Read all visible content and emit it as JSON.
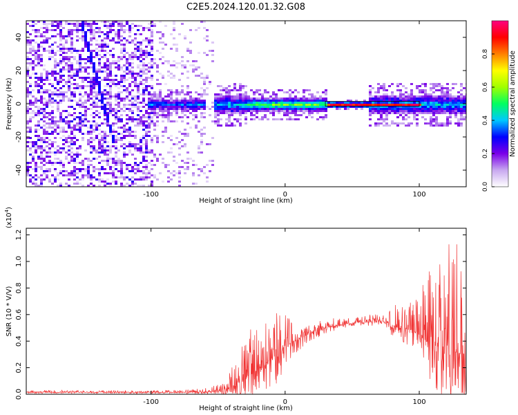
{
  "title": "C2E5.2024.120.01.32.G08",
  "chart_data": [
    {
      "type": "heatmap",
      "xlabel": "Height of straight line (km)",
      "ylabel": "Frequency (Hz)",
      "xlim": [
        -193,
        135
      ],
      "ylim": [
        -50,
        50
      ],
      "x_ticks": [
        -100,
        0,
        100
      ],
      "y_ticks": [
        -40,
        -20,
        0,
        20,
        40
      ],
      "colorbar": {
        "label": "Normalized spectral amplitude",
        "range": [
          0,
          1
        ],
        "ticks": [
          0.0,
          0.2,
          0.4,
          0.6,
          0.8
        ],
        "colors": [
          "#ffffff",
          "#c8a8f0",
          "#7a00e8",
          "#0000ff",
          "#00c8ff",
          "#00ff60",
          "#a0ff00",
          "#ffff00",
          "#ff8000",
          "#ff0000",
          "#ff0080"
        ]
      },
      "features": {
        "noise_region_x": [
          -193,
          -55
        ],
        "dense_noise_x": [
          -193,
          -100
        ],
        "diagonal_line": [
          [
            -152,
            48
          ],
          [
            -130,
            -18
          ]
        ],
        "signal_band": [
          {
            "x": [
              -103,
              -60
            ],
            "halfwidth_hz": 3.5,
            "level": 0.35
          },
          {
            "x": [
              -55,
              -30
            ],
            "halfwidth_hz": 6,
            "level": 0.4
          },
          {
            "x": [
              -30,
              30
            ],
            "halfwidth_hz": 4,
            "level": 0.55
          },
          {
            "x": [
              30,
              100
            ],
            "halfwidth_hz": 1.5,
            "level": 0.9
          },
          {
            "x": [
              62,
              135
            ],
            "halfwidth_hz": 6,
            "level": 0.4
          }
        ]
      }
    },
    {
      "type": "line",
      "xlabel": "Height of straight line (km)",
      "ylabel": "SNR (10 * V/V)",
      "y_exponent_label": "(x10",
      "y_exponent": "4",
      "xlim": [
        -193,
        135
      ],
      "ylim": [
        0,
        12500
      ],
      "x_ticks": [
        -100,
        0,
        100
      ],
      "y_ticks": [
        0,
        2000,
        4000,
        6000,
        8000,
        10000,
        12000
      ],
      "y_tick_labels": [
        "0.0",
        "0.2",
        "0.4",
        "0.6",
        "0.8",
        "1.0",
        "1.2"
      ],
      "color": "#f03030",
      "envelope": [
        {
          "x": -193,
          "base": 150,
          "spread": 150
        },
        {
          "x": -90,
          "base": 150,
          "spread": 150
        },
        {
          "x": -60,
          "base": 150,
          "spread": 300
        },
        {
          "x": -45,
          "base": 300,
          "spread": 700
        },
        {
          "x": -35,
          "base": 900,
          "spread": 3000
        },
        {
          "x": -25,
          "base": 1500,
          "spread": 3500
        },
        {
          "x": -15,
          "base": 2200,
          "spread": 3500
        },
        {
          "x": -5,
          "base": 3000,
          "spread": 3500
        },
        {
          "x": 0,
          "base": 3600,
          "spread": 2500
        },
        {
          "x": 10,
          "base": 4200,
          "spread": 1500
        },
        {
          "x": 30,
          "base": 5000,
          "spread": 700
        },
        {
          "x": 50,
          "base": 5400,
          "spread": 400
        },
        {
          "x": 75,
          "base": 5500,
          "spread": 600
        },
        {
          "x": 80,
          "base": 5200,
          "spread": 1500
        },
        {
          "x": 95,
          "base": 4800,
          "spread": 2200
        },
        {
          "x": 105,
          "base": 4000,
          "spread": 5500
        },
        {
          "x": 115,
          "base": 3500,
          "spread": 7500
        },
        {
          "x": 125,
          "base": 3200,
          "spread": 8500
        },
        {
          "x": 135,
          "base": 3000,
          "spread": 8000
        }
      ]
    }
  ]
}
